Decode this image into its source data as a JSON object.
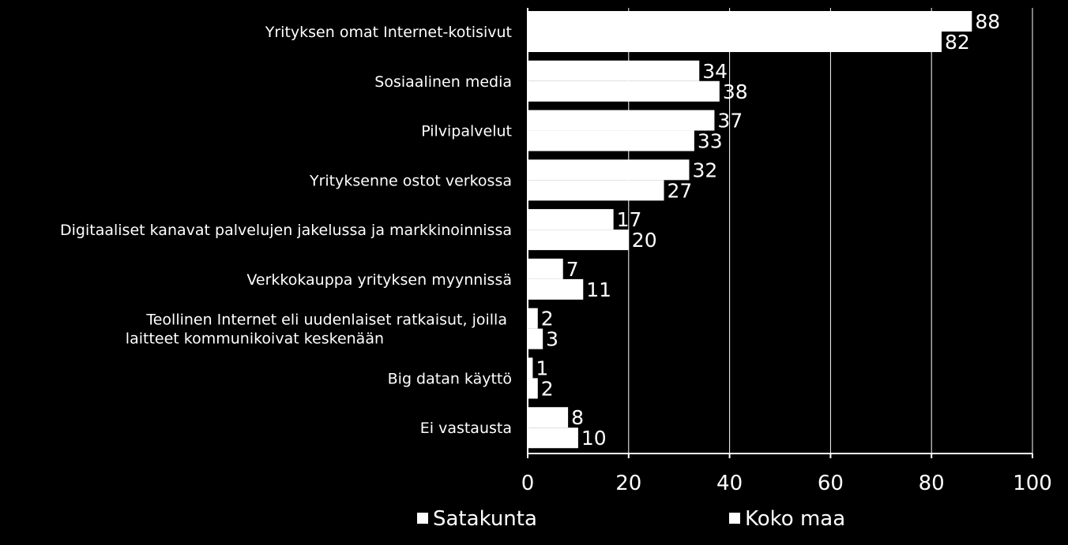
{
  "chart_data": {
    "type": "bar",
    "orientation": "horizontal",
    "categories": [
      "Yrityksen omat Internet-kotisivut",
      "Sosiaalinen media",
      "Pilvipalvelut",
      "Yrityksenne ostot verkossa",
      "Digitaaliset kanavat palvelujen jakelussa ja markkinoinnissa",
      "Verkkokauppa yrityksen myynnissä",
      "Teollinen Internet eli uudenlaiset ratkaisut, joilla laitteet kommunikoivat keskenään",
      "Big datan käyttö",
      "Ei vastausta"
    ],
    "series": [
      {
        "name": "Satakunta",
        "values": [
          88,
          34,
          37,
          32,
          17,
          7,
          2,
          1,
          8
        ]
      },
      {
        "name": "Koko maa",
        "values": [
          82,
          38,
          33,
          27,
          20,
          11,
          3,
          2,
          10
        ]
      }
    ],
    "xlim": [
      0,
      100
    ],
    "xticks": [
      0,
      20,
      40,
      60,
      80,
      100
    ],
    "grid": true,
    "legend": "bottom",
    "colors": {
      "background": "#000000",
      "bars": "#ffffff",
      "text": "#ffffff",
      "grid": "#ffffff"
    }
  }
}
